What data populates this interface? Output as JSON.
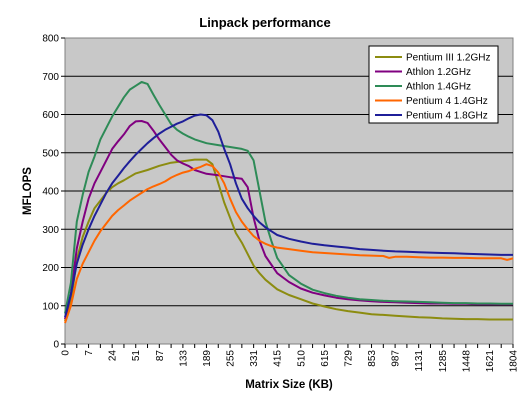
{
  "chart_data": {
    "type": "line",
    "title": "Linpack performance",
    "xlabel": "Matrix Size (KB)",
    "ylabel": "MFLOPS",
    "ylim": [
      0,
      800
    ],
    "y_ticks": [
      0,
      100,
      200,
      300,
      400,
      500,
      600,
      700,
      800
    ],
    "x_tick_labels": [
      "0",
      "7",
      "24",
      "51",
      "87",
      "133",
      "189",
      "255",
      "331",
      "415",
      "510",
      "615",
      "729",
      "853",
      "987",
      "1131",
      "1285",
      "1448",
      "1621",
      "1804"
    ],
    "x_range_index": [
      0,
      38
    ],
    "grid": "horizontal",
    "legend_position": "top-right",
    "series": [
      {
        "name": "Pentium III 1.2GHz",
        "color": "#8c8c10",
        "points": [
          [
            0,
            60
          ],
          [
            0.5,
            110
          ],
          [
            1,
            220
          ],
          [
            1.5,
            280
          ],
          [
            2,
            320
          ],
          [
            2.5,
            355
          ],
          [
            3,
            375
          ],
          [
            3.5,
            395
          ],
          [
            4,
            410
          ],
          [
            4.5,
            420
          ],
          [
            5,
            428
          ],
          [
            5.5,
            437
          ],
          [
            6,
            446
          ],
          [
            7,
            455
          ],
          [
            8,
            466
          ],
          [
            9,
            474
          ],
          [
            10,
            478
          ],
          [
            11,
            482
          ],
          [
            12,
            482
          ],
          [
            12.5,
            470
          ],
          [
            13,
            420
          ],
          [
            13.5,
            370
          ],
          [
            14,
            330
          ],
          [
            14.5,
            290
          ],
          [
            15,
            265
          ],
          [
            15.5,
            235
          ],
          [
            16,
            205
          ],
          [
            16.5,
            185
          ],
          [
            17,
            168
          ],
          [
            18,
            143
          ],
          [
            19,
            128
          ],
          [
            20,
            117
          ],
          [
            21,
            106
          ],
          [
            22,
            98
          ],
          [
            23,
            91
          ],
          [
            24,
            86
          ],
          [
            25,
            82
          ],
          [
            26,
            78
          ],
          [
            27,
            76
          ],
          [
            28,
            74
          ],
          [
            29,
            72
          ],
          [
            30,
            70
          ],
          [
            31,
            69
          ],
          [
            32,
            67
          ],
          [
            33,
            66
          ],
          [
            34,
            65
          ],
          [
            35,
            65
          ],
          [
            36,
            64
          ],
          [
            37,
            64
          ],
          [
            38,
            64
          ]
        ]
      },
      {
        "name": "Athlon 1.2GHz",
        "color": "#800080",
        "points": [
          [
            0,
            65
          ],
          [
            0.5,
            130
          ],
          [
            1,
            250
          ],
          [
            1.5,
            320
          ],
          [
            2,
            380
          ],
          [
            2.5,
            420
          ],
          [
            3,
            450
          ],
          [
            3.5,
            480
          ],
          [
            4,
            510
          ],
          [
            4.5,
            530
          ],
          [
            5,
            548
          ],
          [
            5.5,
            570
          ],
          [
            6,
            582
          ],
          [
            6.5,
            583
          ],
          [
            7,
            578
          ],
          [
            7.5,
            558
          ],
          [
            8,
            535
          ],
          [
            8.5,
            515
          ],
          [
            9,
            495
          ],
          [
            9.5,
            480
          ],
          [
            10,
            472
          ],
          [
            10.5,
            465
          ],
          [
            11,
            455
          ],
          [
            11.5,
            450
          ],
          [
            12,
            445
          ],
          [
            13,
            441
          ],
          [
            14,
            436
          ],
          [
            15,
            432
          ],
          [
            15.5,
            410
          ],
          [
            16,
            330
          ],
          [
            16.5,
            270
          ],
          [
            17,
            230
          ],
          [
            18,
            185
          ],
          [
            19,
            162
          ],
          [
            20,
            145
          ],
          [
            21,
            134
          ],
          [
            22,
            127
          ],
          [
            23,
            121
          ],
          [
            24,
            117
          ],
          [
            25,
            114
          ],
          [
            26,
            112
          ],
          [
            27,
            110
          ],
          [
            28,
            109
          ],
          [
            29,
            108
          ],
          [
            30,
            107
          ],
          [
            31,
            106
          ],
          [
            32,
            106
          ],
          [
            33,
            105
          ],
          [
            34,
            105
          ],
          [
            35,
            104
          ],
          [
            36,
            104
          ],
          [
            37,
            104
          ],
          [
            38,
            104
          ]
        ]
      },
      {
        "name": "Athlon 1.4GHz",
        "color": "#2e8b57",
        "points": [
          [
            0,
            80
          ],
          [
            0.5,
            160
          ],
          [
            1,
            320
          ],
          [
            1.5,
            390
          ],
          [
            2,
            450
          ],
          [
            2.5,
            490
          ],
          [
            3,
            535
          ],
          [
            3.5,
            565
          ],
          [
            4,
            595
          ],
          [
            4.5,
            620
          ],
          [
            5,
            645
          ],
          [
            5.5,
            665
          ],
          [
            6,
            675
          ],
          [
            6.5,
            685
          ],
          [
            7,
            680
          ],
          [
            7.5,
            652
          ],
          [
            8,
            625
          ],
          [
            8.5,
            600
          ],
          [
            9,
            575
          ],
          [
            9.5,
            560
          ],
          [
            10,
            550
          ],
          [
            10.5,
            542
          ],
          [
            11,
            535
          ],
          [
            11.5,
            530
          ],
          [
            12,
            525
          ],
          [
            13,
            520
          ],
          [
            14,
            515
          ],
          [
            15,
            510
          ],
          [
            15.5,
            505
          ],
          [
            16,
            480
          ],
          [
            16.5,
            400
          ],
          [
            17,
            320
          ],
          [
            17.5,
            270
          ],
          [
            18,
            225
          ],
          [
            19,
            180
          ],
          [
            20,
            158
          ],
          [
            21,
            142
          ],
          [
            22,
            133
          ],
          [
            23,
            126
          ],
          [
            24,
            121
          ],
          [
            25,
            117
          ],
          [
            26,
            115
          ],
          [
            27,
            113
          ],
          [
            28,
            112
          ],
          [
            29,
            111
          ],
          [
            30,
            110
          ],
          [
            31,
            109
          ],
          [
            32,
            108
          ],
          [
            33,
            107
          ],
          [
            34,
            107
          ],
          [
            35,
            106
          ],
          [
            36,
            106
          ],
          [
            37,
            105
          ],
          [
            38,
            105
          ]
        ]
      },
      {
        "name": "Pentium 4 1.4GHz",
        "color": "#ff6600",
        "points": [
          [
            0,
            55
          ],
          [
            0.5,
            100
          ],
          [
            1,
            170
          ],
          [
            1.5,
            210
          ],
          [
            2,
            240
          ],
          [
            2.5,
            270
          ],
          [
            3,
            295
          ],
          [
            3.5,
            315
          ],
          [
            4,
            335
          ],
          [
            4.5,
            350
          ],
          [
            5,
            362
          ],
          [
            5.5,
            375
          ],
          [
            6,
            385
          ],
          [
            6.5,
            395
          ],
          [
            7,
            405
          ],
          [
            7.5,
            412
          ],
          [
            8,
            418
          ],
          [
            8.5,
            425
          ],
          [
            9,
            435
          ],
          [
            9.5,
            442
          ],
          [
            10,
            448
          ],
          [
            10.5,
            452
          ],
          [
            11,
            458
          ],
          [
            11.5,
            463
          ],
          [
            12,
            470
          ],
          [
            12.5,
            465
          ],
          [
            13,
            448
          ],
          [
            13.5,
            420
          ],
          [
            14,
            380
          ],
          [
            14.5,
            345
          ],
          [
            15,
            320
          ],
          [
            15.5,
            300
          ],
          [
            16,
            282
          ],
          [
            16.5,
            270
          ],
          [
            17,
            262
          ],
          [
            17.5,
            256
          ],
          [
            18,
            252
          ],
          [
            19,
            248
          ],
          [
            20,
            244
          ],
          [
            21,
            240
          ],
          [
            22,
            238
          ],
          [
            23,
            236
          ],
          [
            24,
            234
          ],
          [
            25,
            232
          ],
          [
            26,
            231
          ],
          [
            27,
            230
          ],
          [
            27.5,
            225
          ],
          [
            28,
            228
          ],
          [
            29,
            228
          ],
          [
            30,
            227
          ],
          [
            31,
            226
          ],
          [
            32,
            226
          ],
          [
            33,
            225
          ],
          [
            34,
            225
          ],
          [
            35,
            224
          ],
          [
            36,
            224
          ],
          [
            37,
            224
          ],
          [
            37.5,
            220
          ],
          [
            38,
            224
          ]
        ]
      },
      {
        "name": "Pentium 4 1.8GHz",
        "color": "#1f1f99",
        "points": [
          [
            0,
            70
          ],
          [
            0.5,
            130
          ],
          [
            1,
            210
          ],
          [
            1.5,
            260
          ],
          [
            2,
            300
          ],
          [
            2.5,
            335
          ],
          [
            3,
            365
          ],
          [
            3.5,
            395
          ],
          [
            4,
            420
          ],
          [
            4.5,
            440
          ],
          [
            5,
            460
          ],
          [
            5.5,
            478
          ],
          [
            6,
            495
          ],
          [
            6.5,
            510
          ],
          [
            7,
            525
          ],
          [
            7.5,
            538
          ],
          [
            8,
            550
          ],
          [
            8.5,
            560
          ],
          [
            9,
            568
          ],
          [
            9.5,
            576
          ],
          [
            10,
            582
          ],
          [
            10.5,
            590
          ],
          [
            11,
            597
          ],
          [
            11.5,
            600
          ],
          [
            12,
            598
          ],
          [
            12.5,
            585
          ],
          [
            13,
            555
          ],
          [
            13.5,
            510
          ],
          [
            14,
            470
          ],
          [
            14.5,
            420
          ],
          [
            15,
            380
          ],
          [
            15.5,
            355
          ],
          [
            16,
            335
          ],
          [
            16.5,
            318
          ],
          [
            17,
            305
          ],
          [
            17.5,
            295
          ],
          [
            18,
            285
          ],
          [
            19,
            275
          ],
          [
            20,
            268
          ],
          [
            21,
            262
          ],
          [
            22,
            258
          ],
          [
            23,
            255
          ],
          [
            24,
            252
          ],
          [
            25,
            248
          ],
          [
            26,
            246
          ],
          [
            27,
            244
          ],
          [
            28,
            242
          ],
          [
            29,
            241
          ],
          [
            30,
            240
          ],
          [
            31,
            239
          ],
          [
            32,
            238
          ],
          [
            33,
            237
          ],
          [
            34,
            236
          ],
          [
            35,
            235
          ],
          [
            36,
            234
          ],
          [
            37,
            233
          ],
          [
            38,
            233
          ]
        ]
      }
    ]
  }
}
